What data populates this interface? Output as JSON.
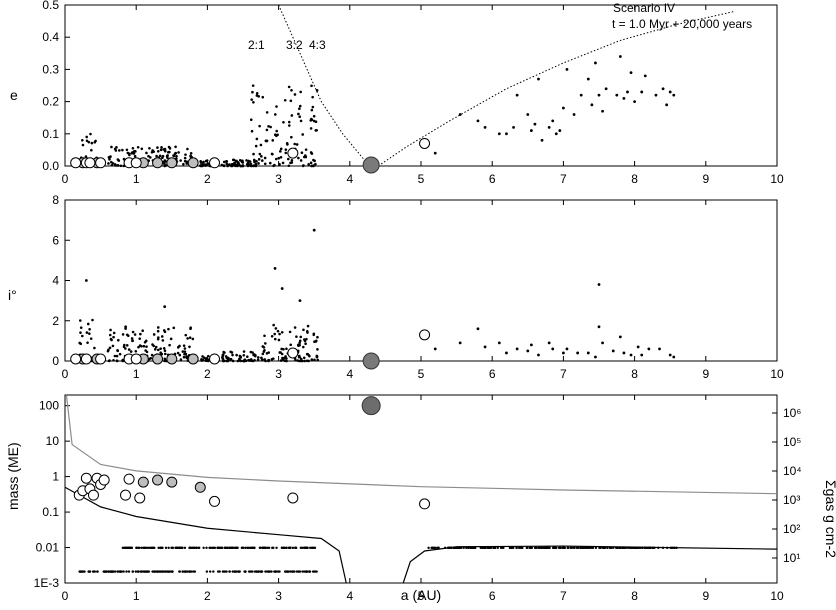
{
  "figure": {
    "annotation_title": "Scenario IV",
    "annotation_time": "t = 1.0 Myr + 20,000 years",
    "resonances": [
      "2:1",
      "3:2",
      "4:3"
    ]
  },
  "chart_data": [
    {
      "type": "scatter",
      "panel": "eccentricity",
      "xlabel": "",
      "ylabel": "e",
      "xlim": [
        0,
        10
      ],
      "ylim": [
        0,
        0.5
      ],
      "xticks": [
        "0",
        "1",
        "2",
        "3",
        "4",
        "5",
        "6",
        "7",
        "8",
        "9",
        "10"
      ],
      "yticks": [
        "0.0",
        "0.1",
        "0.2",
        "0.3",
        "0.4",
        "0.5"
      ],
      "giant": {
        "a": 4.3,
        "e": 0.0
      },
      "embryos_gray": [
        [
          0.25,
          0.01
        ],
        [
          0.45,
          0.01
        ],
        [
          1.1,
          0.01
        ],
        [
          1.3,
          0.01
        ],
        [
          1.5,
          0.01
        ],
        [
          1.8,
          0.01
        ]
      ],
      "embryos_white": [
        [
          0.15,
          0.01
        ],
        [
          0.3,
          0.01
        ],
        [
          0.35,
          0.01
        ],
        [
          0.5,
          0.01
        ],
        [
          0.9,
          0.01
        ],
        [
          1.0,
          0.01
        ],
        [
          2.1,
          0.01
        ],
        [
          3.2,
          0.04
        ],
        [
          5.05,
          0.07
        ]
      ],
      "outer_planetesimals": [
        [
          5.2,
          0.04
        ],
        [
          5.55,
          0.16
        ],
        [
          5.8,
          0.14
        ],
        [
          5.9,
          0.12
        ],
        [
          6.1,
          0.1
        ],
        [
          6.2,
          0.1
        ],
        [
          6.3,
          0.12
        ],
        [
          6.35,
          0.22
        ],
        [
          6.5,
          0.16
        ],
        [
          6.55,
          0.11
        ],
        [
          6.6,
          0.13
        ],
        [
          6.65,
          0.27
        ],
        [
          6.7,
          0.08
        ],
        [
          6.8,
          0.12
        ],
        [
          6.85,
          0.14
        ],
        [
          6.9,
          0.1
        ],
        [
          6.95,
          0.11
        ],
        [
          7.0,
          0.18
        ],
        [
          7.05,
          0.3
        ],
        [
          7.15,
          0.16
        ],
        [
          7.25,
          0.22
        ],
        [
          7.35,
          0.27
        ],
        [
          7.4,
          0.19
        ],
        [
          7.45,
          0.32
        ],
        [
          7.5,
          0.22
        ],
        [
          7.55,
          0.17
        ],
        [
          7.6,
          0.24
        ],
        [
          7.75,
          0.22
        ],
        [
          7.8,
          0.34
        ],
        [
          7.85,
          0.21
        ],
        [
          7.9,
          0.23
        ],
        [
          7.95,
          0.29
        ],
        [
          8.0,
          0.2
        ],
        [
          8.1,
          0.23
        ],
        [
          8.15,
          0.28
        ],
        [
          8.3,
          0.22
        ],
        [
          8.4,
          0.24
        ],
        [
          8.45,
          0.19
        ],
        [
          8.5,
          0.23
        ],
        [
          8.55,
          0.22
        ]
      ],
      "cluster_regions": [
        [
          0.2,
          0.45,
          0.1
        ],
        [
          0.6,
          1.8,
          0.06
        ],
        [
          1.9,
          2.1,
          0.02
        ],
        [
          2.2,
          2.7,
          0.02
        ],
        [
          2.6,
          2.75,
          0.3
        ],
        [
          2.75,
          3.55,
          0.25
        ]
      ],
      "stability_curve_left": [
        [
          3.0,
          0.5
        ],
        [
          3.3,
          0.35
        ],
        [
          3.6,
          0.2
        ],
        [
          3.9,
          0.1
        ],
        [
          4.2,
          0.02
        ]
      ],
      "stability_curve_right": [
        [
          4.4,
          0.0
        ],
        [
          4.8,
          0.06
        ],
        [
          5.4,
          0.14
        ],
        [
          6.2,
          0.24
        ],
        [
          7.0,
          0.32
        ],
        [
          7.8,
          0.39
        ],
        [
          8.6,
          0.44
        ],
        [
          9.4,
          0.48
        ]
      ]
    },
    {
      "type": "scatter",
      "panel": "inclination",
      "xlabel": "",
      "ylabel": "i°",
      "xlim": [
        0,
        10
      ],
      "ylim": [
        0,
        8
      ],
      "xticks": [
        "0",
        "1",
        "2",
        "3",
        "4",
        "5",
        "6",
        "7",
        "8",
        "9",
        "10"
      ],
      "yticks": [
        "0",
        "2",
        "4",
        "6",
        "8"
      ],
      "giant": {
        "a": 4.3,
        "i": 0.0
      },
      "embryos_gray": [
        [
          0.25,
          0.1
        ],
        [
          0.45,
          0.1
        ],
        [
          1.1,
          0.1
        ],
        [
          1.3,
          0.1
        ],
        [
          1.5,
          0.1
        ],
        [
          1.8,
          0.1
        ]
      ],
      "embryos_white": [
        [
          0.15,
          0.1
        ],
        [
          0.3,
          0.1
        ],
        [
          0.5,
          0.1
        ],
        [
          0.9,
          0.1
        ],
        [
          1.0,
          0.1
        ],
        [
          2.1,
          0.1
        ],
        [
          3.2,
          0.4
        ],
        [
          5.05,
          1.3
        ]
      ],
      "outer_planetesimals": [
        [
          5.2,
          0.6
        ],
        [
          5.55,
          0.9
        ],
        [
          5.8,
          1.6
        ],
        [
          5.9,
          0.7
        ],
        [
          6.1,
          0.9
        ],
        [
          6.2,
          0.4
        ],
        [
          6.35,
          0.6
        ],
        [
          6.5,
          0.5
        ],
        [
          6.55,
          0.8
        ],
        [
          6.65,
          0.3
        ],
        [
          6.8,
          0.9
        ],
        [
          6.85,
          0.6
        ],
        [
          7.0,
          0.4
        ],
        [
          7.05,
          0.6
        ],
        [
          7.2,
          0.4
        ],
        [
          7.35,
          0.4
        ],
        [
          7.45,
          0.2
        ],
        [
          7.5,
          3.8
        ],
        [
          7.5,
          1.7
        ],
        [
          7.55,
          0.9
        ],
        [
          7.7,
          0.5
        ],
        [
          7.8,
          1.2
        ],
        [
          7.85,
          0.4
        ],
        [
          7.95,
          0.3
        ],
        [
          8.05,
          0.7
        ],
        [
          8.1,
          0.3
        ],
        [
          8.2,
          0.6
        ],
        [
          8.35,
          0.6
        ],
        [
          8.5,
          0.3
        ],
        [
          8.55,
          0.2
        ]
      ],
      "cluster_regions": [
        [
          0.2,
          0.45,
          2.6
        ],
        [
          0.6,
          1.8,
          1.8
        ],
        [
          1.9,
          2.1,
          0.3
        ],
        [
          2.2,
          2.7,
          0.5
        ],
        [
          2.7,
          3.55,
          1.8
        ]
      ],
      "outliers": [
        [
          3.5,
          6.5
        ],
        [
          2.95,
          4.6
        ],
        [
          0.3,
          4.0
        ],
        [
          3.05,
          3.6
        ],
        [
          3.3,
          3.0
        ],
        [
          1.4,
          2.7
        ]
      ]
    },
    {
      "type": "scatter",
      "panel": "mass",
      "xlabel": "a (AU)",
      "ylabel": "mass (ME)",
      "ylabel_right": "Σgas g cm-2",
      "xlim": [
        0,
        10
      ],
      "ylim": [
        0.001,
        200
      ],
      "yscale": "log",
      "xticks": [
        "0",
        "1",
        "2",
        "3",
        "4",
        "5",
        "6",
        "7",
        "8",
        "9",
        "10"
      ],
      "yticks_left": [
        "1E-3",
        "0.01",
        "0.1",
        "1",
        "10",
        "100"
      ],
      "yticks_right": [
        "10¹",
        "10²",
        "10³",
        "10⁴",
        "10⁵",
        "10⁶"
      ],
      "giant": {
        "a": 4.3,
        "mass": 100
      },
      "embryos_gray": [
        [
          1.1,
          0.7
        ],
        [
          1.3,
          0.8
        ],
        [
          1.5,
          0.7
        ],
        [
          1.9,
          0.5
        ]
      ],
      "embryos_white": [
        [
          0.2,
          0.3
        ],
        [
          0.25,
          0.4
        ],
        [
          0.3,
          0.9
        ],
        [
          0.35,
          0.45
        ],
        [
          0.4,
          0.3
        ],
        [
          0.45,
          0.9
        ],
        [
          0.5,
          0.6
        ],
        [
          0.55,
          0.8
        ],
        [
          0.85,
          0.3
        ],
        [
          0.9,
          0.85
        ],
        [
          1.05,
          0.25
        ],
        [
          2.1,
          0.2
        ],
        [
          3.2,
          0.25
        ],
        [
          5.05,
          0.17
        ]
      ],
      "planetesimal_rows": [
        [
          0.2,
          3.55,
          0.0021
        ],
        [
          0.8,
          3.55,
          0.0098
        ],
        [
          5.1,
          8.6,
          0.0098
        ]
      ],
      "gas_density_curve": [
        [
          0.02,
          300
        ],
        [
          0.1,
          8
        ],
        [
          0.5,
          2.2
        ],
        [
          1,
          1.45
        ],
        [
          2,
          0.95
        ],
        [
          3,
          0.75
        ],
        [
          5,
          0.52
        ],
        [
          7,
          0.42
        ],
        [
          10,
          0.33
        ]
      ],
      "gas_gap_curve_left": [
        [
          0.0,
          0.5
        ],
        [
          0.2,
          0.3
        ],
        [
          0.5,
          0.14
        ],
        [
          1,
          0.075
        ],
        [
          2,
          0.035
        ],
        [
          3,
          0.023
        ],
        [
          3.6,
          0.018
        ],
        [
          3.85,
          0.008
        ],
        [
          3.95,
          0.001
        ]
      ],
      "gas_gap_curve_right": [
        [
          4.75,
          0.001
        ],
        [
          4.85,
          0.004
        ],
        [
          5.05,
          0.008
        ],
        [
          5.5,
          0.0105
        ],
        [
          7,
          0.011
        ],
        [
          10,
          0.009
        ]
      ]
    }
  ]
}
